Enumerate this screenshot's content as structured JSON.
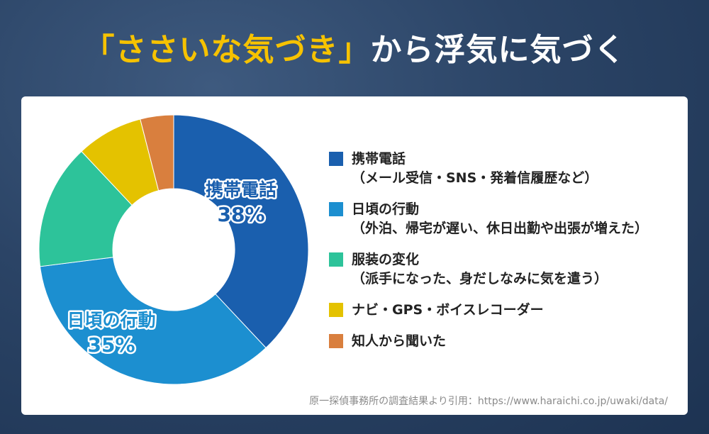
{
  "title": {
    "highlight": "「ささいな気づき」",
    "rest": "から浮気に気づく"
  },
  "colors": {
    "title_highlight": "#f6c200",
    "background": "#2b4466"
  },
  "chart_data": {
    "type": "pie",
    "style": "donut",
    "legend_position": "right",
    "slices": [
      {
        "name": "携帯電話",
        "detail": "（メール受信・SNS・発着信履歴など）",
        "value": 38,
        "color": "#1a5fae",
        "label_name": "携帯電話",
        "label_value": "38%"
      },
      {
        "name": "日頃の行動",
        "detail": "（外泊、帰宅が遅い、休日出勤や出張が増えた）",
        "value": 35,
        "color": "#1c8fd0",
        "label_name": "日頃の行動",
        "label_value": "35%"
      },
      {
        "name": "服装の変化",
        "detail": "（派手になった、身だしなみに気を遣う）",
        "value": 15,
        "color": "#2dc39a",
        "label_name": "",
        "label_value": ""
      },
      {
        "name": "ナビ・GPS・ボイスレコーダー",
        "detail": "",
        "value": 8,
        "color": "#e4c200",
        "label_name": "",
        "label_value": ""
      },
      {
        "name": "知人から聞いた",
        "detail": "",
        "value": 4,
        "color": "#d97f3e",
        "label_name": "",
        "label_value": ""
      }
    ]
  },
  "source": "原一探偵事務所の調査結果より引用：https://www.haraichi.co.jp/uwaki/data/"
}
